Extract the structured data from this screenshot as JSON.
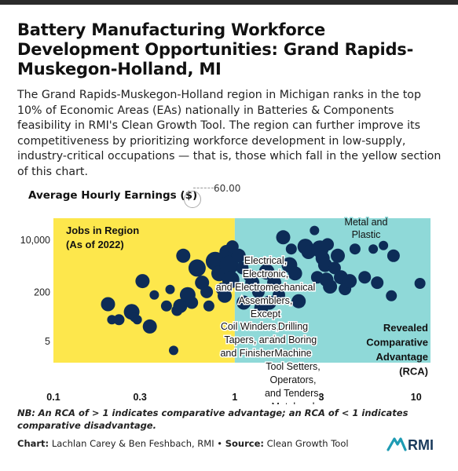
{
  "header": {
    "title": "Battery Manufacturing Workforce Development Opportunities: Grand Rapids-Muskegon-Holland, MI",
    "description": "The Grand Rapids-Muskegon-Holland region in Michigan ranks in the top 10% of Economic Areas (EAs) nationally in Batteries & Components feasibility in RMI's Clean Growth Tool. The region can further improve its competitiveness by prioritizing workforce development in low-supply, industry-critical occupations — that is, those which fall in the yellow section of this chart."
  },
  "legend": {
    "title": "Average Hourly Earnings ($)",
    "value": "60.00"
  },
  "colors": {
    "yellow": "#fde74c",
    "teal": "#8fd9d8",
    "dot": "#0d2c57"
  },
  "chart_data": {
    "type": "scatter",
    "x_scale": "log",
    "y_scale": "log",
    "xlim": [
      0.1,
      12
    ],
    "ylim": [
      1,
      50000
    ],
    "x_ticks": [
      0.1,
      0.3,
      1,
      3,
      10
    ],
    "x_tick_labels": [
      "0.1",
      "0.3",
      "1",
      "3",
      "10"
    ],
    "y_ticks": [
      5,
      200,
      10000
    ],
    "y_tick_labels": [
      "5",
      "200",
      "10,000"
    ],
    "threshold_x": 1,
    "region_labels": {
      "left": "Jobs in Region (As of 2022)",
      "right": "Revealed Comparative Advantage (RCA)"
    },
    "annotations": [
      "Metal and Plastic",
      "Electrical, Electronic, and Electromechanical Assemblers, Except",
      "Coil Winders, Tapers, and Finishers",
      "Drilling and Boring Machine Tool Setters, Operators, and Tenders, Metal and Plastic"
    ],
    "points": [
      {
        "x": 0.2,
        "y": 80,
        "r": 9
      },
      {
        "x": 0.21,
        "y": 25,
        "r": 6
      },
      {
        "x": 0.23,
        "y": 25,
        "r": 7
      },
      {
        "x": 0.27,
        "y": 45,
        "r": 10
      },
      {
        "x": 0.28,
        "y": 30,
        "r": 6
      },
      {
        "x": 0.29,
        "y": 25,
        "r": 6
      },
      {
        "x": 0.31,
        "y": 450,
        "r": 9
      },
      {
        "x": 0.34,
        "y": 15,
        "r": 9
      },
      {
        "x": 0.36,
        "y": 160,
        "r": 6
      },
      {
        "x": 0.44,
        "y": 240,
        "r": 6
      },
      {
        "x": 0.46,
        "y": 2.5,
        "r": 6
      },
      {
        "x": 0.42,
        "y": 70,
        "r": 7
      },
      {
        "x": 0.48,
        "y": 50,
        "r": 7
      },
      {
        "x": 0.5,
        "y": 70,
        "r": 9
      },
      {
        "x": 0.52,
        "y": 3000,
        "r": 9
      },
      {
        "x": 0.55,
        "y": 160,
        "r": 10
      },
      {
        "x": 0.58,
        "y": 90,
        "r": 8
      },
      {
        "x": 0.62,
        "y": 1200,
        "r": 11
      },
      {
        "x": 0.66,
        "y": 400,
        "r": 9
      },
      {
        "x": 0.7,
        "y": 200,
        "r": 8
      },
      {
        "x": 0.72,
        "y": 70,
        "r": 7
      },
      {
        "x": 0.78,
        "y": 2000,
        "r": 12
      },
      {
        "x": 0.82,
        "y": 800,
        "r": 10
      },
      {
        "x": 0.85,
        "y": 250,
        "r": 8
      },
      {
        "x": 0.88,
        "y": 150,
        "r": 9
      },
      {
        "x": 0.9,
        "y": 4000,
        "r": 9
      },
      {
        "x": 0.93,
        "y": 1500,
        "r": 12
      },
      {
        "x": 0.95,
        "y": 500,
        "r": 11
      },
      {
        "x": 0.97,
        "y": 6000,
        "r": 8
      },
      {
        "x": 1.05,
        "y": 3000,
        "r": 9
      },
      {
        "x": 1.1,
        "y": 1200,
        "r": 8
      },
      {
        "x": 1.12,
        "y": 90,
        "r": 9
      },
      {
        "x": 1.2,
        "y": 700,
        "r": 8
      },
      {
        "x": 1.25,
        "y": 400,
        "r": 9
      },
      {
        "x": 1.35,
        "y": 200,
        "r": 8
      },
      {
        "x": 1.4,
        "y": 60,
        "r": 9
      },
      {
        "x": 1.5,
        "y": 900,
        "r": 10
      },
      {
        "x": 1.55,
        "y": 90,
        "r": 9
      },
      {
        "x": 1.65,
        "y": 400,
        "r": 9
      },
      {
        "x": 1.75,
        "y": 160,
        "r": 8
      },
      {
        "x": 1.85,
        "y": 12000,
        "r": 9
      },
      {
        "x": 2.0,
        "y": 1500,
        "r": 10
      },
      {
        "x": 2.05,
        "y": 5000,
        "r": 7
      },
      {
        "x": 2.15,
        "y": 800,
        "r": 9
      },
      {
        "x": 2.25,
        "y": 100,
        "r": 9
      },
      {
        "x": 2.45,
        "y": 6000,
        "r": 10
      },
      {
        "x": 2.55,
        "y": 4000,
        "r": 9
      },
      {
        "x": 2.75,
        "y": 20000,
        "r": 6
      },
      {
        "x": 2.85,
        "y": 600,
        "r": 8
      },
      {
        "x": 2.95,
        "y": 5000,
        "r": 11
      },
      {
        "x": 3.05,
        "y": 2500,
        "r": 9
      },
      {
        "x": 3.15,
        "y": 1500,
        "r": 9
      },
      {
        "x": 3.2,
        "y": 500,
        "r": 9
      },
      {
        "x": 3.25,
        "y": 7000,
        "r": 8
      },
      {
        "x": 3.35,
        "y": 300,
        "r": 9
      },
      {
        "x": 3.55,
        "y": 1200,
        "r": 8
      },
      {
        "x": 3.7,
        "y": 3000,
        "r": 9
      },
      {
        "x": 3.85,
        "y": 600,
        "r": 9
      },
      {
        "x": 4.05,
        "y": 250,
        "r": 8
      },
      {
        "x": 4.3,
        "y": 450,
        "r": 9
      },
      {
        "x": 4.6,
        "y": 5000,
        "r": 7
      },
      {
        "x": 5.2,
        "y": 600,
        "r": 8
      },
      {
        "x": 5.8,
        "y": 5000,
        "r": 6
      },
      {
        "x": 6.1,
        "y": 400,
        "r": 8
      },
      {
        "x": 6.6,
        "y": 6500,
        "r": 6
      },
      {
        "x": 7.3,
        "y": 150,
        "r": 7
      },
      {
        "x": 7.5,
        "y": 3000,
        "r": 8
      },
      {
        "x": 10.5,
        "y": 380,
        "r": 7
      }
    ]
  },
  "footer": {
    "note_prefix": "NB:",
    "note_text": "An RCA of > 1 indicates comparative advantage; an RCA of < 1 indicates comparative disadvantage.",
    "chart_label": "Chart:",
    "chart_authors": "Lachlan Carey & Ben Feshbach, RMI",
    "separator": "•",
    "source_label": "Source:",
    "source_text": "Clean Growth Tool",
    "logo_text": "RMI"
  }
}
